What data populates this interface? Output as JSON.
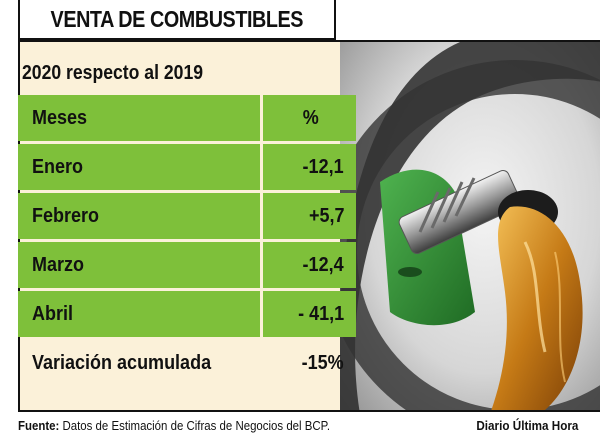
{
  "header": {
    "title": "VENTA DE COMBUSTIBLES"
  },
  "subtitle": "2020 respecto al 2019",
  "chart_data": {
    "type": "table",
    "title": "VENTA DE COMBUSTIBLES",
    "subtitle": "2020 respecto al 2019",
    "columns": [
      "Meses",
      "%"
    ],
    "rows": [
      {
        "label": "Enero",
        "value": "-12,1"
      },
      {
        "label": "Febrero",
        "value": "+5,7"
      },
      {
        "label": "Marzo",
        "value": "-12,4"
      },
      {
        "label": "Abril",
        "value": "- 41,1"
      }
    ],
    "total": {
      "label": "Variación acumulada",
      "value": "-15%"
    }
  },
  "footer": {
    "source_label": "Fuente:",
    "source_text": " Datos de Estimación de Cifras de Negocios del BCP.",
    "brand": "Diario Última Hora"
  },
  "colors": {
    "accent_green": "#7ec03a",
    "panel_bg": "#fbf1d9",
    "ink": "#111111"
  }
}
